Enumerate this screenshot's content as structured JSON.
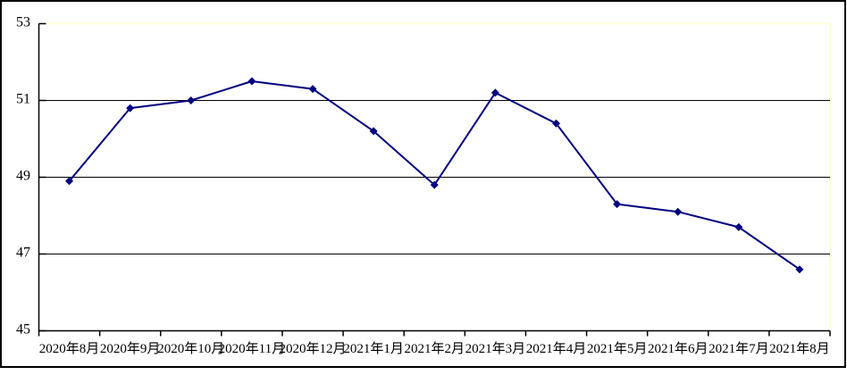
{
  "chart_data": {
    "type": "line",
    "title": "",
    "xlabel": "",
    "ylabel": "",
    "categories": [
      "2020年8月",
      "2020年9月",
      "2020年10月",
      "2020年11月",
      "2020年12月",
      "2021年1月",
      "2021年2月",
      "2021年3月",
      "2021年4月",
      "2021年5月",
      "2021年6月",
      "2021年7月",
      "2021年8月"
    ],
    "values": [
      48.9,
      50.8,
      51.0,
      51.5,
      51.3,
      50.2,
      48.8,
      51.2,
      50.4,
      48.3,
      48.1,
      47.7,
      46.6
    ],
    "ylim": [
      45,
      53
    ],
    "yticks": [
      45,
      47,
      49,
      51,
      53
    ],
    "ytick_labels": [
      "45",
      "47",
      "49",
      "51",
      "53"
    ],
    "gridlines_y": [
      47,
      49,
      51
    ],
    "grid": "horizontal-only",
    "legend": "none",
    "marker": "diamond",
    "colors": {
      "series_line": "#000080",
      "marker": "#000080",
      "gridline": "#000000",
      "axis": "#000000",
      "plot_border_top_right": "#ffffcc",
      "background": "#ffffff",
      "outer_frame": "#000000",
      "label_text": "#000000"
    }
  }
}
